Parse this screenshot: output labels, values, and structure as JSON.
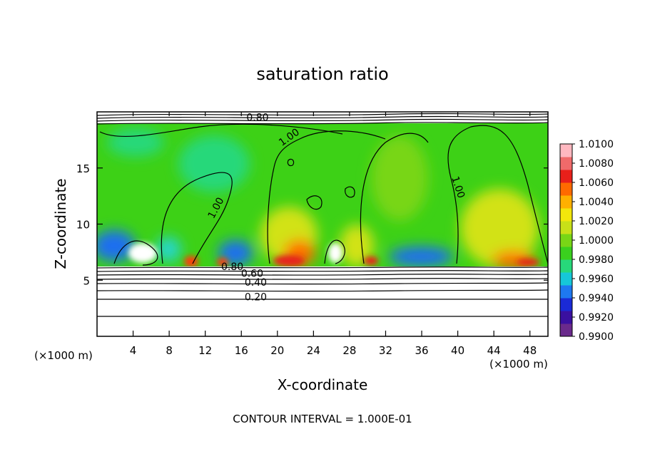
{
  "chart_data": {
    "type": "heatmap",
    "title": "saturation ratio",
    "xlabel": "X-coordinate",
    "ylabel": "Z-coordinate",
    "x_unit": "(×1000 m)",
    "xlim": [
      0,
      50
    ],
    "ylim": [
      0,
      20
    ],
    "x_ticks": [
      4,
      8,
      12,
      16,
      20,
      24,
      28,
      32,
      36,
      40,
      44,
      48
    ],
    "y_ticks": [
      5,
      10,
      15
    ],
    "footer": "CONTOUR INTERVAL = 1.000E-01",
    "colorbar": {
      "levels": [
        "1.0100",
        "1.0080",
        "1.0060",
        "1.0040",
        "1.0020",
        "1.0000",
        "0.9980",
        "0.9960",
        "0.9940",
        "0.9920",
        "0.9900"
      ],
      "colors": [
        "#6a2a8c",
        "#3a10a0",
        "#1a2ad6",
        "#1e78f0",
        "#16c7d8",
        "#27d87a",
        "#3ad01e",
        "#78d616",
        "#c8e018",
        "#f2e60c",
        "#ffb000",
        "#ff6a00",
        "#e8201a",
        "#f06a6a",
        "#ffb8c0"
      ]
    },
    "contour_labels": [
      {
        "text": "1.00",
        "x": 21.5,
        "z": 17.5,
        "rot": -35
      },
      {
        "text": "1.00",
        "x": 13.5,
        "z": 11.3,
        "rot": -62
      },
      {
        "text": "1.00",
        "x": 39.7,
        "z": 13.2,
        "rot": 72
      },
      {
        "text": "0.80",
        "x": 17.8,
        "z": 19.2,
        "rot": 0
      },
      {
        "text": "0.80",
        "x": 15.0,
        "z": 5.9,
        "rot": 0
      },
      {
        "text": "0.60",
        "x": 17.2,
        "z": 5.3,
        "rot": 0
      },
      {
        "text": "0.40",
        "x": 17.6,
        "z": 4.5,
        "rot": 0
      },
      {
        "text": "0.20",
        "x": 17.6,
        "z": 3.2,
        "rot": 0
      }
    ]
  }
}
